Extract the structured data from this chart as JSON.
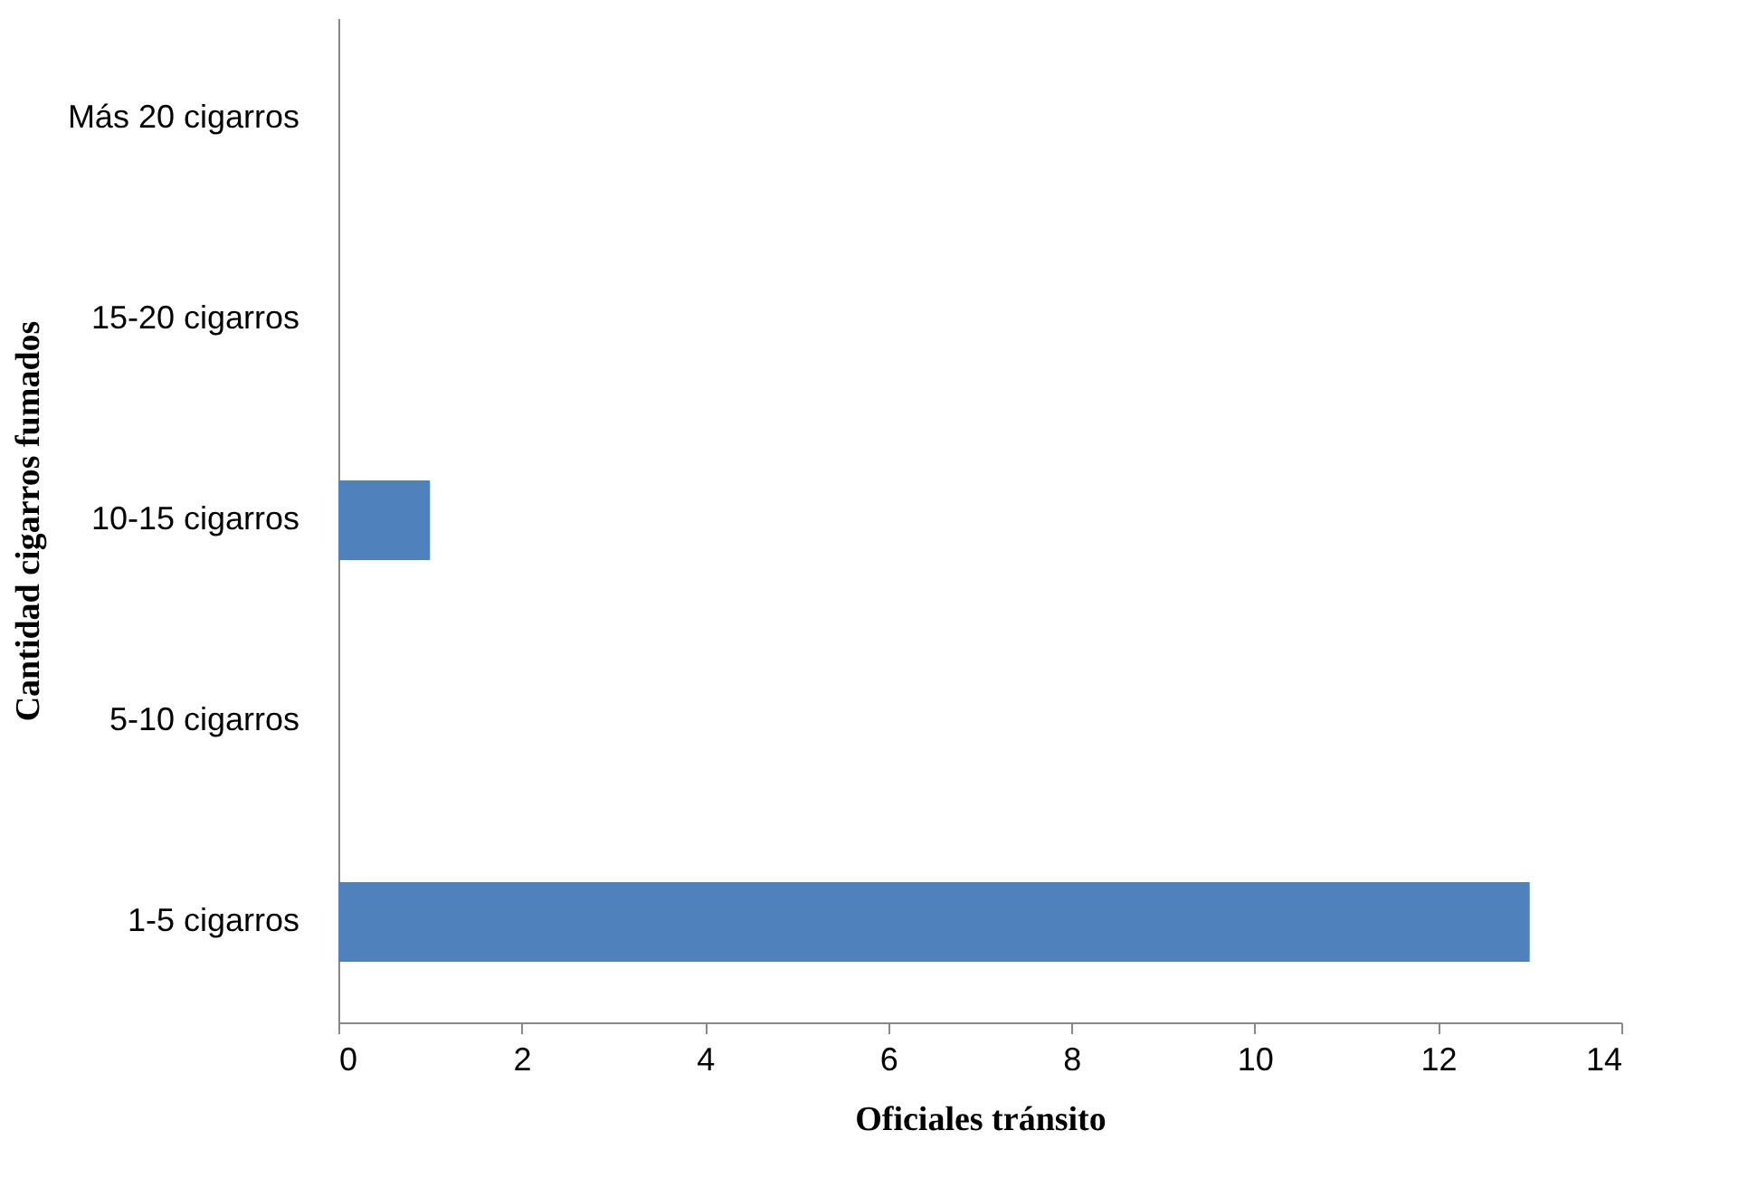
{
  "chart_data": {
    "type": "bar",
    "orientation": "horizontal",
    "categories": [
      "Más 20 cigarros",
      "15-20 cigarros",
      "10-15 cigarros",
      "5-10 cigarros",
      "1-5 cigarros"
    ],
    "values": [
      0,
      0,
      1,
      0,
      13
    ],
    "color": "#4f81bd",
    "xlabel": "Oficiales tránsito",
    "ylabel": "Cantidad cigarros fumados",
    "xlim": [
      0,
      14
    ],
    "xticks": [
      0,
      2,
      4,
      6,
      8,
      10,
      12,
      14
    ],
    "grid": false
  }
}
